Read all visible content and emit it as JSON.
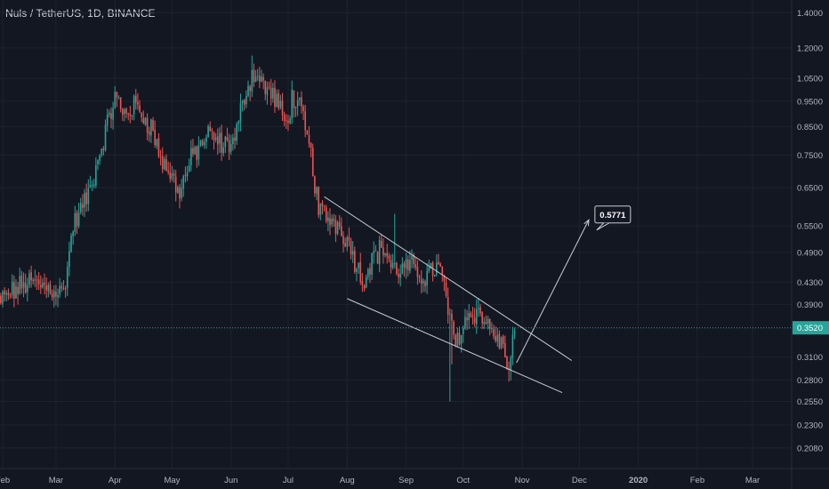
{
  "header": {
    "title": "Nuls / TetherUS, 1D, BINANCE"
  },
  "chart_data": {
    "type": "candlestick",
    "scale": "log",
    "ylim": [
      0.19,
      1.48
    ],
    "y_ticks": [
      "1.4000",
      "1.2000",
      "1.0500",
      "0.9500",
      "0.8500",
      "0.7500",
      "0.6500",
      "0.5500",
      "0.4900",
      "0.4300",
      "0.3900",
      "0.3520",
      "0.3100",
      "0.2800",
      "0.2550",
      "0.2300",
      "0.2080"
    ],
    "x_ticks": [
      "Feb",
      "Mar",
      "Apr",
      "May",
      "Jun",
      "Jul",
      "Aug",
      "Sep",
      "Oct",
      "Nov",
      "Dec",
      "2020",
      "Feb",
      "Mar"
    ],
    "x_tick_dates": [
      "2019-02-01",
      "2019-03-01",
      "2019-04-01",
      "2019-05-01",
      "2019-06-01",
      "2019-07-01",
      "2019-08-01",
      "2019-09-01",
      "2019-10-01",
      "2019-11-01",
      "2019-12-01",
      "2020-01-01",
      "2020-02-01",
      "2020-03-01"
    ],
    "current_price": {
      "value": 0.352,
      "label": "0.3520"
    },
    "target_label": {
      "value": 0.5771,
      "label": "0.5771",
      "date": "2019-12-12"
    },
    "anchors": [
      [
        "2019-01-28",
        0.39
      ],
      [
        "2019-02-05",
        0.41
      ],
      [
        "2019-02-15",
        0.43
      ],
      [
        "2019-02-25",
        0.42
      ],
      [
        "2019-03-05",
        0.41
      ],
      [
        "2019-03-10",
        0.55
      ],
      [
        "2019-03-18",
        0.63
      ],
      [
        "2019-03-25",
        0.78
      ],
      [
        "2019-04-01",
        0.97
      ],
      [
        "2019-04-05",
        0.9
      ],
      [
        "2019-04-12",
        0.93
      ],
      [
        "2019-04-20",
        0.85
      ],
      [
        "2019-04-25",
        0.74
      ],
      [
        "2019-05-05",
        0.64
      ],
      [
        "2019-05-12",
        0.75
      ],
      [
        "2019-05-20",
        0.82
      ],
      [
        "2019-05-28",
        0.78
      ],
      [
        "2019-06-03",
        0.8
      ],
      [
        "2019-06-08",
        0.98
      ],
      [
        "2019-06-13",
        1.08
      ],
      [
        "2019-06-20",
        1.0
      ],
      [
        "2019-06-25",
        0.95
      ],
      [
        "2019-06-30",
        0.85
      ],
      [
        "2019-07-03",
        0.97
      ],
      [
        "2019-07-08",
        0.9
      ],
      [
        "2019-07-13",
        0.75
      ],
      [
        "2019-07-17",
        0.59
      ],
      [
        "2019-07-22",
        0.57
      ],
      [
        "2019-07-28",
        0.55
      ],
      [
        "2019-08-03",
        0.5
      ],
      [
        "2019-08-09",
        0.43
      ],
      [
        "2019-08-14",
        0.48
      ],
      [
        "2019-08-20",
        0.5
      ],
      [
        "2019-08-26",
        0.45
      ],
      [
        "2019-09-03",
        0.46
      ],
      [
        "2019-09-10",
        0.44
      ],
      [
        "2019-09-17",
        0.46
      ],
      [
        "2019-09-21",
        0.43
      ],
      [
        "2019-09-24",
        0.36
      ],
      [
        "2019-09-27",
        0.33
      ],
      [
        "2019-10-03",
        0.37
      ],
      [
        "2019-10-08",
        0.38
      ],
      [
        "2019-10-13",
        0.36
      ],
      [
        "2019-10-18",
        0.34
      ],
      [
        "2019-10-23",
        0.315
      ],
      [
        "2019-10-25",
        0.29
      ],
      [
        "2019-10-28",
        0.35
      ]
    ],
    "wicks": [
      {
        "date": "2019-06-12",
        "high": 1.16
      },
      {
        "date": "2019-09-24",
        "low": 0.255
      },
      {
        "date": "2019-09-25",
        "low": 0.3
      },
      {
        "date": "2019-10-25",
        "low": 0.278
      },
      {
        "date": "2019-07-17",
        "high": 0.65
      },
      {
        "date": "2019-08-26",
        "high": 0.58
      }
    ],
    "trendlines": [
      {
        "name": "upper",
        "from": [
          "2019-07-20",
          0.625
        ],
        "to": [
          "2019-11-27",
          0.305
        ]
      },
      {
        "name": "lower",
        "from": [
          "2019-08-01",
          0.4
        ],
        "to": [
          "2019-11-22",
          0.265
        ]
      }
    ],
    "projection_arrow": {
      "from": [
        "2019-10-29",
        0.302
      ],
      "to": [
        "2019-12-06",
        0.565
      ]
    },
    "colors": {
      "background": "#131722",
      "up": "#26a69a",
      "down": "#ef5350",
      "grid": "#1e222d",
      "line": "#c9ccd3",
      "price_line": "#26a69a",
      "text": "#b2b5be"
    }
  }
}
